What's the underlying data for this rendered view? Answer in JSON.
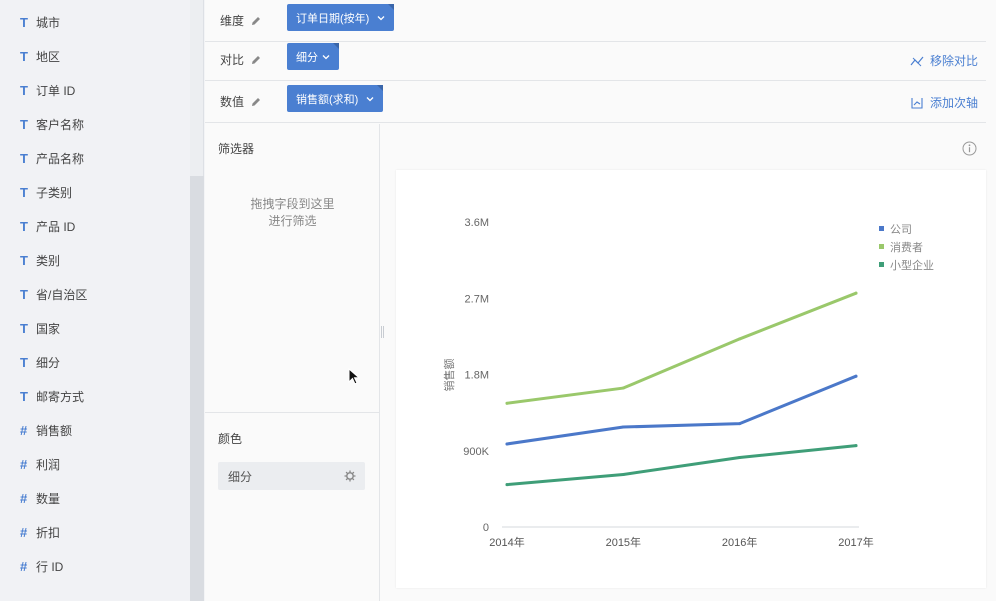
{
  "fields": [
    {
      "type": "T",
      "name": "城市"
    },
    {
      "type": "T",
      "name": "地区"
    },
    {
      "type": "T",
      "name": "订单 ID"
    },
    {
      "type": "T",
      "name": "客户名称"
    },
    {
      "type": "T",
      "name": "产品名称"
    },
    {
      "type": "T",
      "name": "子类别"
    },
    {
      "type": "T",
      "name": "产品 ID"
    },
    {
      "type": "T",
      "name": "类别"
    },
    {
      "type": "T",
      "name": "省/自治区"
    },
    {
      "type": "T",
      "name": "国家"
    },
    {
      "type": "T",
      "name": "细分"
    },
    {
      "type": "T",
      "name": "邮寄方式"
    },
    {
      "type": "#",
      "name": "销售额"
    },
    {
      "type": "#",
      "name": "利润"
    },
    {
      "type": "#",
      "name": "数量"
    },
    {
      "type": "#",
      "name": "折扣"
    },
    {
      "type": "#",
      "name": "行 ID"
    }
  ],
  "shelves": {
    "dimension": {
      "label": "维度",
      "pill": "订单日期(按年)"
    },
    "compare": {
      "label": "对比",
      "pill": "细分",
      "action": "移除对比"
    },
    "value": {
      "label": "数值",
      "pill": "销售额(求和)",
      "action": "添加次轴"
    }
  },
  "filter": {
    "title": "筛选器",
    "hint_line1": "拖拽字段到这里",
    "hint_line2": "进行筛选"
  },
  "color": {
    "title": "颜色",
    "field": "细分"
  },
  "chart_data": {
    "type": "line",
    "categories": [
      "2014年",
      "2015年",
      "2016年",
      "2017年"
    ],
    "ylabel": "销售额",
    "xlabel": "",
    "ylim": [
      0,
      3600000
    ],
    "yticks": [
      {
        "value": 0,
        "label": "0"
      },
      {
        "value": 900000,
        "label": "900K"
      },
      {
        "value": 1800000,
        "label": "1.8M"
      },
      {
        "value": 2700000,
        "label": "2.7M"
      },
      {
        "value": 3600000,
        "label": "3.6M"
      }
    ],
    "legend_position": "top-right",
    "grid": false,
    "series": [
      {
        "name": "公司",
        "color": "#4b78c9",
        "values": [
          980000,
          1180000,
          1220000,
          1780000
        ]
      },
      {
        "name": "消费者",
        "color": "#9ac86b",
        "values": [
          1460000,
          1640000,
          2220000,
          2760000
        ]
      },
      {
        "name": "小型企业",
        "color": "#3f9e78",
        "values": [
          500000,
          620000,
          820000,
          960000
        ]
      }
    ]
  }
}
